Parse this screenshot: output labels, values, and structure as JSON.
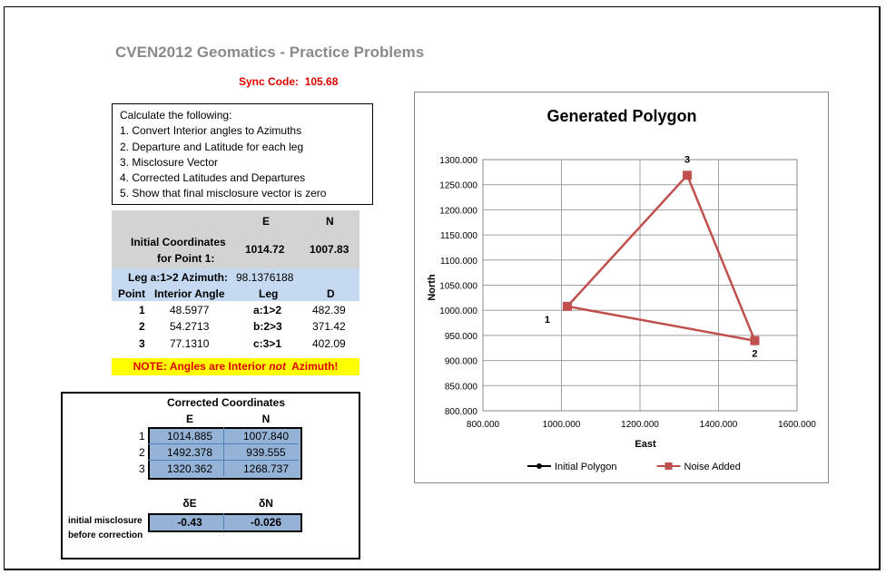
{
  "header": {
    "title": "CVEN2012  Geomatics - Practice Problems",
    "sync_label": "Sync Code:",
    "sync_value": "105.68"
  },
  "instructions": [
    "Calculate the following:",
    "1. Convert Interior angles to Azimuths",
    "2. Departure and Latitude for each leg",
    "3. Misclosure Vector",
    "4. Corrected Latitudes and Departures",
    "5. Show that final misclosure vector is zero"
  ],
  "initial": {
    "col_e": "E",
    "col_n": "N",
    "label_line1": "Initial Coordinates",
    "label_line2": "for Point 1:",
    "e": "1014.72",
    "n": "1007.83"
  },
  "azimuth": {
    "label": "Leg a:1>2 Azimuth:",
    "value": "98.1376188"
  },
  "legs": {
    "headers": [
      "Point",
      "Interior Angle",
      "Leg",
      "D"
    ],
    "rows": [
      {
        "point": "1",
        "angle": "48.5977",
        "leg": "a:1>2",
        "d": "482.39"
      },
      {
        "point": "2",
        "angle": "54.2713",
        "leg": "b:2>3",
        "d": "371.42"
      },
      {
        "point": "3",
        "angle": "77.1310",
        "leg": "c:3>1",
        "d": "402.09"
      }
    ]
  },
  "note": {
    "prefix": "NOTE: Angles are Interior ",
    "emph": "not",
    "suffix": "  Azimuth!"
  },
  "corrected": {
    "title": "Corrected Coordinates",
    "col_e": "E",
    "col_n": "N",
    "rows": [
      {
        "idx": "1",
        "e": "1014.885",
        "n": "1007.840"
      },
      {
        "idx": "2",
        "e": "1492.378",
        "n": "939.555"
      },
      {
        "idx": "3",
        "e": "1320.362",
        "n": "1268.737"
      }
    ],
    "delta_e_label": "δE",
    "delta_n_label": "δN",
    "misclosure_line1": "initial misclosure",
    "misclosure_line2": "before correction",
    "delta_e": "-0.43",
    "delta_n": "-0.026"
  },
  "chart_data": {
    "type": "scatter",
    "title": "Generated Polygon",
    "xlabel": "East",
    "ylabel": "North",
    "xlim": [
      800,
      1600
    ],
    "ylim": [
      800,
      1300
    ],
    "x_ticks": [
      "800.000",
      "1000.000",
      "1200.000",
      "1400.000",
      "1600.000"
    ],
    "y_ticks": [
      "800.000",
      "850.000",
      "900.000",
      "950.000",
      "1000.000",
      "1050.000",
      "1100.000",
      "1150.000",
      "1200.000",
      "1250.000",
      "1300.000"
    ],
    "grid": true,
    "legend_position": "bottom",
    "series": [
      {
        "name": "Initial Polygon",
        "color": "#000000",
        "marker": "circle",
        "x": [
          1014.72,
          1492.378,
          1320.362,
          1014.72
        ],
        "y": [
          1007.83,
          939.555,
          1268.737,
          1007.83
        ]
      },
      {
        "name": "Noise Added",
        "color": "#c0504d",
        "marker": "square",
        "x": [
          1014.885,
          1492.378,
          1320.362,
          1014.885
        ],
        "y": [
          1007.84,
          939.555,
          1268.737,
          1007.84
        ]
      }
    ],
    "point_labels": [
      {
        "text": "1",
        "x": 1014.885,
        "y": 1007.84
      },
      {
        "text": "2",
        "x": 1492.378,
        "y": 939.555
      },
      {
        "text": "3",
        "x": 1320.362,
        "y": 1268.737
      }
    ]
  }
}
